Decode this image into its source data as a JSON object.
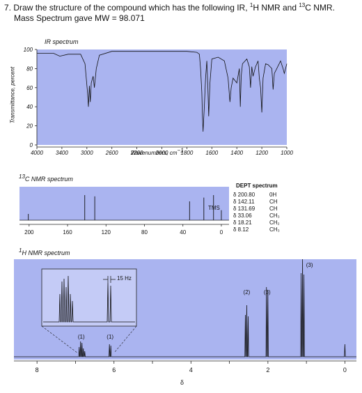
{
  "problem": {
    "number": "7.",
    "text_a": "Draw the structure of the compound which has the following IR, ",
    "sup_h": "1",
    "text_b": "H NMR and ",
    "sup_c": "13",
    "text_c": "C NMR.",
    "line2": "Mass Spectrum gave MW = 98.071"
  },
  "ir": {
    "title": "IR spectrum",
    "ylabel": "Transmittance, percent",
    "xlabel": "Wavenumbers, cm",
    "xlabel_sup": "−1",
    "yticks": [
      "100",
      "80",
      "60",
      "40",
      "20",
      "0"
    ],
    "xticks": [
      "4000",
      "3400",
      "3000",
      "2600",
      "2200",
      "2000",
      "1800",
      "1600",
      "1400",
      "1200",
      "1000"
    ]
  },
  "cnmr": {
    "title_sup": "13",
    "title": "C NMR spectrum",
    "tms": "TMS",
    "xticks": [
      "200",
      "160",
      "120",
      "80",
      "40",
      "0"
    ]
  },
  "dept": {
    "title": "DEPT spectrum",
    "rows": [
      {
        "shift": "δ 200.80",
        "mult": "0H"
      },
      {
        "shift": "δ 142.11",
        "mult": "CH"
      },
      {
        "shift": "δ 131.69",
        "mult": "CH"
      },
      {
        "shift": "δ  33.06",
        "mult": "CH₃"
      },
      {
        "shift": "δ  18.21",
        "mult": "CH₂"
      },
      {
        "shift": "δ    8.12",
        "mult": "CH₃"
      }
    ]
  },
  "hnmr": {
    "title_sup": "1",
    "title": "H NMR spectrum",
    "inset_scale": "15 Hz",
    "integrations": [
      "(1)",
      "(1)",
      "(2)",
      "(3)",
      "(3)"
    ],
    "xticks": [
      "8",
      "6",
      "4",
      "2",
      "0"
    ],
    "xlabel": "δ"
  },
  "colors": {
    "panel": "#aab4f0",
    "inset": "#c4cbf6",
    "trace": "#111111"
  },
  "chart_data": [
    {
      "type": "line",
      "title": "IR spectrum",
      "xlabel": "Wavenumbers, cm−1",
      "ylabel": "Transmittance, percent",
      "xlim": [
        4000,
        1000
      ],
      "ylim": [
        0,
        100
      ],
      "x_ticks": [
        4000,
        3400,
        3000,
        2600,
        2200,
        2000,
        1800,
        1600,
        1400,
        1200,
        1000
      ],
      "y_ticks": [
        100,
        80,
        60,
        40,
        20,
        0
      ],
      "series": [
        {
          "x": [
            4000,
            3600,
            3450,
            3300,
            3100,
            3030,
            3010,
            2990,
            2975,
            2960,
            2945,
            2930,
            2900,
            2880,
            2850,
            2800,
            2600,
            2400,
            2200,
            2000,
            1800,
            1720,
            1700,
            1690,
            1680,
            1675,
            1670,
            1660,
            1650,
            1640,
            1632,
            1625,
            1615,
            1600,
            1550,
            1500,
            1470,
            1455,
            1445,
            1430,
            1400,
            1380,
            1372,
            1365,
            1355,
            1320,
            1300,
            1290,
            1280,
            1270,
            1250,
            1230,
            1220,
            1210,
            1200,
            1190,
            1170,
            1150,
            1120,
            1110,
            1100,
            1080,
            1050,
            1030,
            1020,
            1000
          ],
          "y": [
            96,
            96,
            93,
            95,
            95,
            85,
            70,
            55,
            40,
            62,
            45,
            65,
            72,
            60,
            80,
            94,
            98,
            98,
            98,
            98,
            98,
            97,
            95,
            80,
            55,
            30,
            14,
            40,
            70,
            88,
            60,
            30,
            65,
            90,
            92,
            88,
            70,
            45,
            60,
            70,
            65,
            80,
            40,
            72,
            85,
            90,
            82,
            60,
            82,
            72,
            82,
            88,
            70,
            60,
            34,
            70,
            85,
            84,
            80,
            58,
            75,
            80,
            88,
            80,
            75,
            85
          ]
        }
      ]
    },
    {
      "type": "bar",
      "title": "13C NMR spectrum",
      "xlim": [
        210,
        -8
      ],
      "x_ticks": [
        200,
        160,
        120,
        80,
        40,
        0
      ],
      "peaks_ppm": [
        200.8,
        142.11,
        131.69,
        33.06,
        18.21,
        8.12,
        0
      ],
      "relative_heights": [
        0.25,
        1.0,
        0.95,
        0.75,
        0.9,
        1.0,
        0.4
      ]
    },
    {
      "type": "line",
      "title": "1H NMR spectrum",
      "xlabel": "δ",
      "xlim": [
        8.6,
        -0.3
      ],
      "x_ticks": [
        8,
        6,
        4,
        2,
        0
      ],
      "peaks_ppm": [
        6.85,
        6.1,
        2.55,
        2.02,
        1.1,
        0.0
      ],
      "integrations": [
        "(1)",
        "(1)",
        "(2)",
        "(3)",
        "(3)"
      ]
    }
  ]
}
